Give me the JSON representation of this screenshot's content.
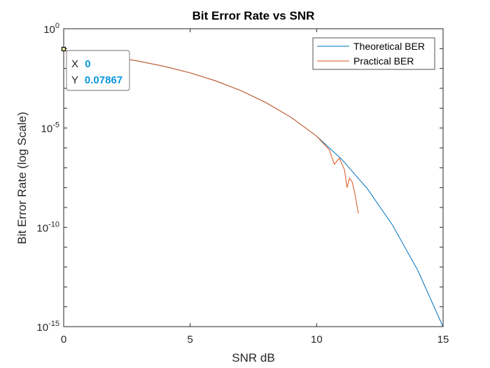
{
  "chart_data": {
    "type": "line",
    "title": "Bit Error Rate vs SNR",
    "xlabel": "SNR dB",
    "ylabel": "Bit Error Rate (log Scale)",
    "xlim": [
      0,
      15
    ],
    "ylim": [
      1e-15,
      1
    ],
    "yscale": "log",
    "grid": false,
    "legend_position": "top-right",
    "x_ticks": [
      {
        "value": 0,
        "label": "0"
      },
      {
        "value": 5,
        "label": "5"
      },
      {
        "value": 10,
        "label": "10"
      },
      {
        "value": 15,
        "label": "15"
      }
    ],
    "y_ticks": [
      {
        "exp": 0,
        "base": "10",
        "sup": "0"
      },
      {
        "exp": -5,
        "base": "10",
        "sup": "-5"
      },
      {
        "exp": -10,
        "base": "10",
        "sup": "-10"
      },
      {
        "exp": -15,
        "base": "10",
        "sup": "-15"
      }
    ],
    "series": [
      {
        "name": "Theoretical BER",
        "color": "#0072bd",
        "x": [
          0,
          1,
          2,
          3,
          4,
          5,
          6,
          7,
          8,
          9,
          10,
          11,
          12,
          13,
          14,
          15
        ],
        "y": [
          0.0787,
          0.0563,
          0.0375,
          0.0229,
          0.0125,
          0.006,
          0.0024,
          0.00077,
          0.00019,
          3.4e-05,
          3.9e-06,
          2.6e-07,
          9e-09,
          1.3e-10,
          6.8e-13,
          9.7e-16
        ]
      },
      {
        "name": "Practical BER",
        "color": "#d95319",
        "x": [
          0,
          1,
          2,
          3,
          4,
          5,
          6,
          7,
          8,
          9,
          10,
          10.5,
          10.7,
          10.9,
          11.1,
          11.2,
          11.3,
          11.4,
          11.5,
          11.65
        ],
        "y": [
          0.0787,
          0.0563,
          0.0375,
          0.0229,
          0.0125,
          0.006,
          0.0024,
          0.00077,
          0.00019,
          3.4e-05,
          3.9e-06,
          8e-07,
          1.5e-07,
          3e-07,
          8e-08,
          1e-08,
          3e-08,
          2e-08,
          6e-09,
          5e-10
        ]
      }
    ]
  },
  "datatip": {
    "x_label": "X",
    "x_value": "0",
    "y_label": "Y",
    "y_value": "0.07867",
    "value_color": "#0b96dc"
  }
}
